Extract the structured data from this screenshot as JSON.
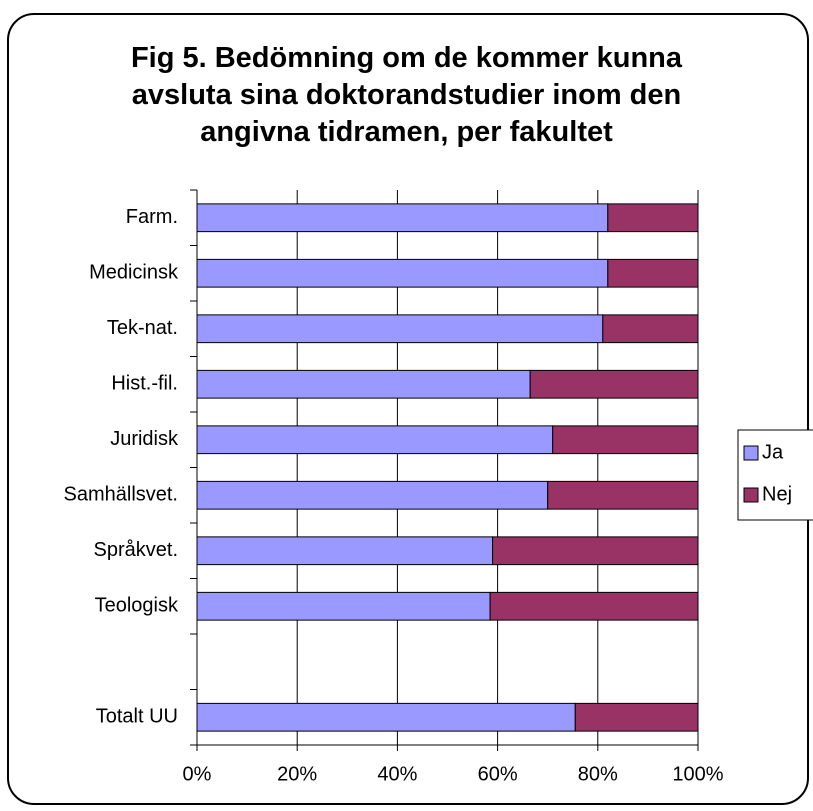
{
  "chart_data": {
    "type": "stacked_barh",
    "title": "Fig 5. Bedömning om de kommer kunna\navsluta sina doktorandstudier inom den\nangivna tidramen, per fakultet",
    "categories": [
      "Farm.",
      "Medicinsk",
      "Tek-nat.",
      "Hist.-fil.",
      "Juridisk",
      "Samhällsvet.",
      "Språkvet.",
      "Teologisk",
      null,
      "Totalt UU"
    ],
    "series": [
      {
        "name": "Ja",
        "color": "#9999ff",
        "values": [
          82,
          82,
          81,
          66.5,
          71,
          70,
          59,
          58.5,
          null,
          75.5
        ]
      },
      {
        "name": "Nej",
        "color": "#993366",
        "values": [
          18,
          18,
          19,
          33.5,
          29,
          30,
          41,
          41.5,
          null,
          24.5
        ]
      }
    ],
    "xlim": [
      0,
      100
    ],
    "xticks": [
      {
        "value": 0,
        "label": "0%"
      },
      {
        "value": 20,
        "label": "20%"
      },
      {
        "value": 40,
        "label": "40%"
      },
      {
        "value": 60,
        "label": "60%"
      },
      {
        "value": 80,
        "label": "80%"
      },
      {
        "value": 100,
        "label": "100%"
      }
    ],
    "grid": true,
    "legend": "right"
  }
}
